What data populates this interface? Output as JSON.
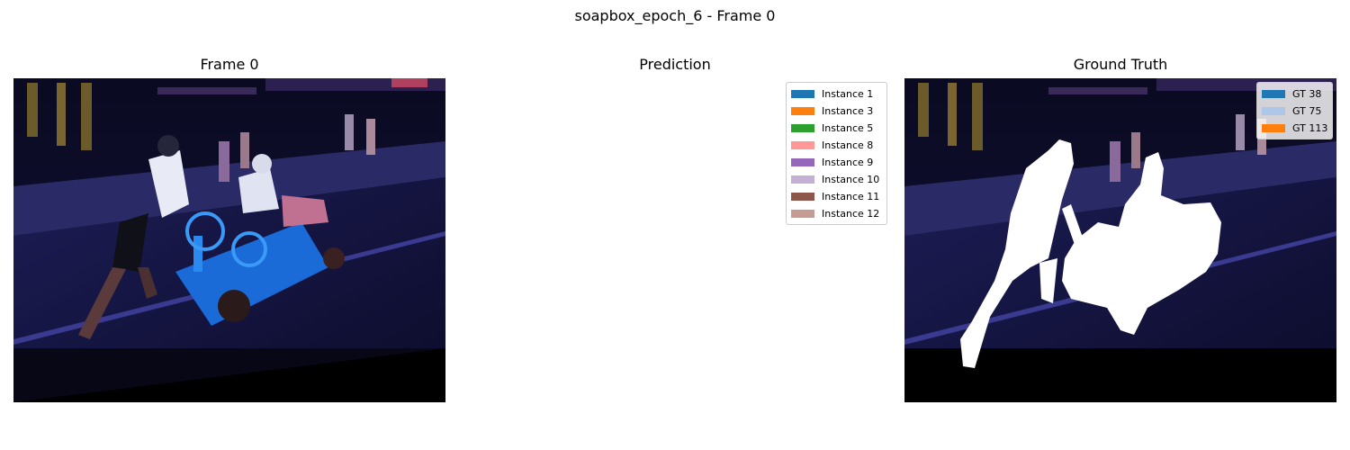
{
  "figure": {
    "title": "soapbox_epoch_6 - Frame 0"
  },
  "panels": {
    "frame": {
      "title": "Frame 0"
    },
    "prediction": {
      "title": "Prediction"
    },
    "ground_truth": {
      "title": "Ground Truth"
    }
  },
  "chart_data": [
    {
      "type": "image",
      "title": "Frame 0",
      "content": "video frame: soapbox car on street",
      "axes": "off"
    },
    {
      "type": "image",
      "title": "Prediction",
      "content": "blank (no predicted instance masks drawn)",
      "axes": "off",
      "legend": {
        "placement": "top-right",
        "entries": [
          {
            "label": "Instance 1",
            "color": "#1f77b4"
          },
          {
            "label": "Instance 3",
            "color": "#ff7f0e"
          },
          {
            "label": "Instance 5",
            "color": "#2ca02c"
          },
          {
            "label": "Instance 8",
            "color": "#ff9896"
          },
          {
            "label": "Instance 9",
            "color": "#9467bd"
          },
          {
            "label": "Instance 10",
            "color": "#c5b0d5"
          },
          {
            "label": "Instance 11",
            "color": "#8c564b"
          },
          {
            "label": "Instance 12",
            "color": "#c49c94"
          }
        ]
      }
    },
    {
      "type": "image",
      "title": "Ground Truth",
      "content": "video frame with white ground-truth mask overlay",
      "axes": "off",
      "legend": {
        "placement": "top-right",
        "entries": [
          {
            "label": "GT 38",
            "color": "#1f77b4"
          },
          {
            "label": "GT 75",
            "color": "#aec7e8"
          },
          {
            "label": "GT 113",
            "color": "#ff7f0e"
          }
        ]
      }
    }
  ]
}
